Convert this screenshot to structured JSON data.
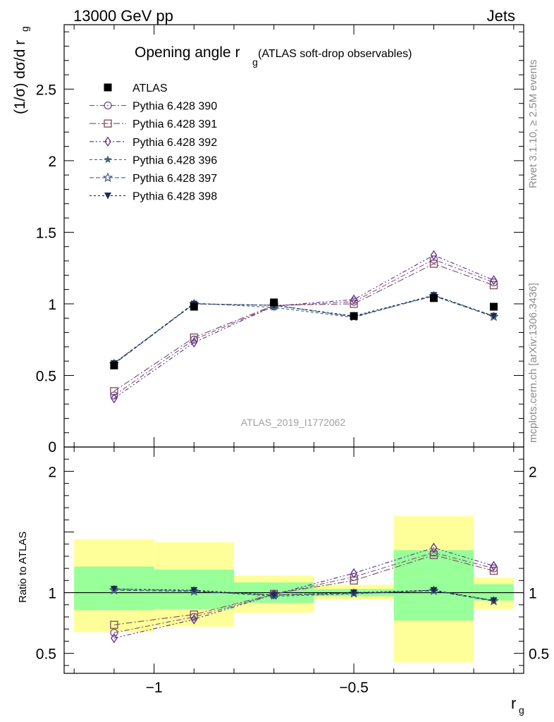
{
  "header": {
    "left": "13000 GeV pp",
    "right": "Jets"
  },
  "side_labels": {
    "rivet": "Rivet 3.1.10, ≥ 2.5M events",
    "mcplots": "mcplots.cern.ch [arXiv:1306.3436]"
  },
  "colors": {
    "data": "#000000",
    "s390": "#7a4f87",
    "s391": "#7d4a5e",
    "s392": "#5b2d91",
    "s396": "#3f6878",
    "s397": "#33507a",
    "s398": "#222a55",
    "band_outer": "#ffff99",
    "band_inner": "#99ff99"
  },
  "chart_data": [
    {
      "type": "line",
      "title_main": "Opening angle r",
      "title_sub": "g",
      "title_rest": " (ATLAS soft-drop observables)",
      "ylabel": "(1/σ) dσ/d r",
      "ylabel_sub": "g",
      "watermark": "ATLAS_2019_I1772062",
      "xlim": [
        -1.225,
        -0.075
      ],
      "ylim": [
        0,
        2.95
      ],
      "yticks": [
        {
          "v": 0.5,
          "label": "0.5"
        },
        {
          "v": 1,
          "label": "1"
        },
        {
          "v": 1.5,
          "label": "1.5"
        },
        {
          "v": 2,
          "label": "2"
        },
        {
          "v": 2.5,
          "label": "2.5"
        }
      ],
      "y_zero_label": "0",
      "x": [
        -1.1,
        -0.9,
        -0.7,
        -0.5,
        -0.3,
        -0.15
      ],
      "series": [
        {
          "name": "ATLAS",
          "key": "data",
          "marker": "square-filled",
          "dash": "",
          "values": [
            0.57,
            0.98,
            1.01,
            0.915,
            1.04,
            0.98
          ]
        },
        {
          "name": "Pythia 6.428 390",
          "key": "s390",
          "marker": "circle-open",
          "dash": "7,3,2,3",
          "values": [
            0.36,
            0.75,
            0.985,
            1.015,
            1.31,
            1.15
          ]
        },
        {
          "name": "Pythia 6.428 391",
          "key": "s391",
          "marker": "square-open",
          "dash": "9,3,2,3",
          "values": [
            0.39,
            0.765,
            0.99,
            1.0,
            1.28,
            1.13
          ]
        },
        {
          "name": "Pythia 6.428 392",
          "key": "s392",
          "marker": "diamond-open",
          "dash": "6,3,2,3,2,3",
          "values": [
            0.34,
            0.73,
            0.985,
            1.03,
            1.34,
            1.165
          ]
        },
        {
          "name": "Pythia 6.428 396",
          "key": "s396",
          "marker": "star-filled",
          "dash": "4,3",
          "values": [
            0.585,
            1.005,
            0.975,
            0.905,
            1.06,
            0.915
          ]
        },
        {
          "name": "Pythia 6.428 397",
          "key": "s397",
          "marker": "star-open",
          "dash": "6,3",
          "values": [
            0.58,
            1.0,
            0.99,
            0.91,
            1.055,
            0.91
          ]
        },
        {
          "name": "Pythia 6.428 398",
          "key": "s398",
          "marker": "triangle-down-filled",
          "dash": "3,3",
          "values": [
            0.585,
            1.0,
            0.99,
            0.915,
            1.06,
            0.915
          ]
        }
      ]
    },
    {
      "type": "line",
      "ylabel": "Ratio to ATLAS",
      "xlabel": "r",
      "xlabel_sub": "g",
      "xlim": [
        -1.225,
        -0.075
      ],
      "ylim": [
        0.335,
        2.2
      ],
      "xticks": [
        {
          "v": -1,
          "label": "−1"
        },
        {
          "v": -0.5,
          "label": "−0.5"
        }
      ],
      "yticks": [
        {
          "v": 0.5,
          "label": "0.5"
        },
        {
          "v": 1,
          "label": "1"
        },
        {
          "v": 2,
          "label": "2"
        }
      ],
      "bands": [
        {
          "x0": -1.2,
          "x1": -1.0,
          "outer": [
            0.675,
            1.44
          ],
          "inner": [
            0.855,
            1.215
          ]
        },
        {
          "x0": -1.0,
          "x1": -0.8,
          "outer": [
            0.72,
            1.415
          ],
          "inner": [
            0.865,
            1.19
          ]
        },
        {
          "x0": -0.8,
          "x1": -0.6,
          "outer": [
            0.835,
            1.14
          ],
          "inner": [
            0.915,
            1.085
          ]
        },
        {
          "x0": -0.6,
          "x1": -0.4,
          "outer": [
            0.945,
            1.065
          ],
          "inner": [
            0.97,
            1.03
          ]
        },
        {
          "x0": -0.4,
          "x1": -0.2,
          "outer": [
            0.425,
            1.63
          ],
          "inner": [
            0.77,
            1.35
          ]
        },
        {
          "x0": -0.2,
          "x1": -0.1,
          "outer": [
            0.865,
            1.125
          ],
          "inner": [
            0.935,
            1.07
          ]
        }
      ],
      "x": [
        -1.1,
        -0.9,
        -0.7,
        -0.5,
        -0.3,
        -0.15
      ],
      "series": [
        {
          "name": "Pythia 6.428 390",
          "key": "s390",
          "marker": "circle-open",
          "dash": "7,3,2,3",
          "values": [
            0.67,
            0.8,
            0.985,
            1.13,
            1.33,
            1.2
          ]
        },
        {
          "name": "Pythia 6.428 391",
          "key": "s391",
          "marker": "square-open",
          "dash": "9,3,2,3",
          "values": [
            0.735,
            0.82,
            0.99,
            1.1,
            1.31,
            1.18
          ]
        },
        {
          "name": "Pythia 6.428 392",
          "key": "s392",
          "marker": "diamond-open",
          "dash": "6,3,2,3,2,3",
          "values": [
            0.625,
            0.78,
            0.985,
            1.16,
            1.37,
            1.22
          ]
        },
        {
          "name": "Pythia 6.428 396",
          "key": "s396",
          "marker": "star-filled",
          "dash": "4,3",
          "values": [
            1.03,
            1.015,
            0.97,
            0.99,
            1.02,
            0.935
          ]
        },
        {
          "name": "Pythia 6.428 397",
          "key": "s397",
          "marker": "star-open",
          "dash": "6,3",
          "values": [
            1.02,
            1.01,
            0.98,
            0.995,
            1.015,
            0.93
          ]
        },
        {
          "name": "Pythia 6.428 398",
          "key": "s398",
          "marker": "triangle-down-filled",
          "dash": "3,3",
          "values": [
            1.03,
            1.02,
            0.98,
            1.0,
            1.02,
            0.935
          ]
        }
      ]
    }
  ]
}
